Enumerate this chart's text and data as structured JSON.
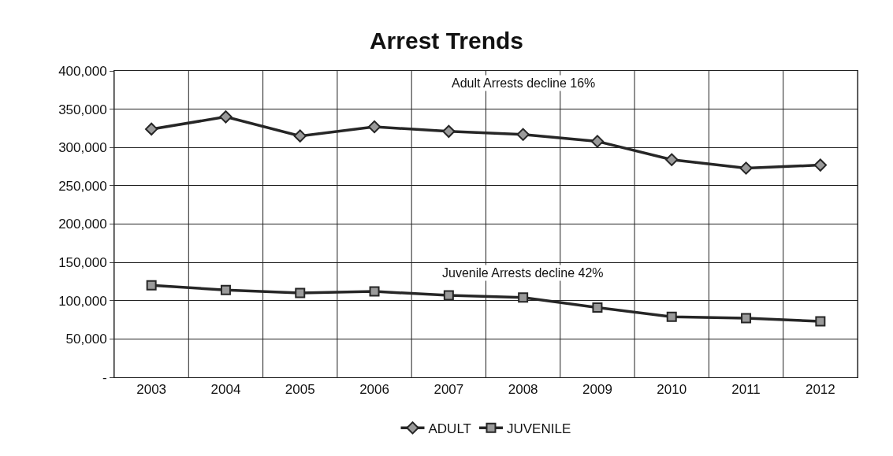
{
  "chart_data": {
    "type": "line",
    "title": "Arrest Trends",
    "categories": [
      "2003",
      "2004",
      "2005",
      "2006",
      "2007",
      "2008",
      "2009",
      "2010",
      "2011",
      "2012"
    ],
    "series": [
      {
        "name": "ADULT",
        "color": "#262626",
        "marker": "diamond",
        "values": [
          324000,
          340000,
          315000,
          327000,
          321000,
          317000,
          308000,
          284000,
          273000,
          277000
        ]
      },
      {
        "name": "JUVENILE",
        "color": "#262626",
        "marker": "square",
        "values": [
          120000,
          114000,
          110000,
          112000,
          107000,
          104000,
          91000,
          79000,
          77000,
          73000
        ]
      }
    ],
    "ylim": [
      0,
      400000
    ],
    "yticks": [
      {
        "value": 0,
        "label": "-"
      },
      {
        "value": 50000,
        "label": "50,000"
      },
      {
        "value": 100000,
        "label": "100,000"
      },
      {
        "value": 150000,
        "label": "150,000"
      },
      {
        "value": 200000,
        "label": "200,000"
      },
      {
        "value": 250000,
        "label": "250,000"
      },
      {
        "value": 300000,
        "label": "300,000"
      },
      {
        "value": 350000,
        "label": "350,000"
      },
      {
        "value": 400000,
        "label": "400,000"
      }
    ],
    "annotations": [
      "Adult Arrests decline 16%",
      "Juvenile Arrests decline 42%"
    ],
    "grid": true,
    "legend": "bottom",
    "line_style": "solid"
  }
}
